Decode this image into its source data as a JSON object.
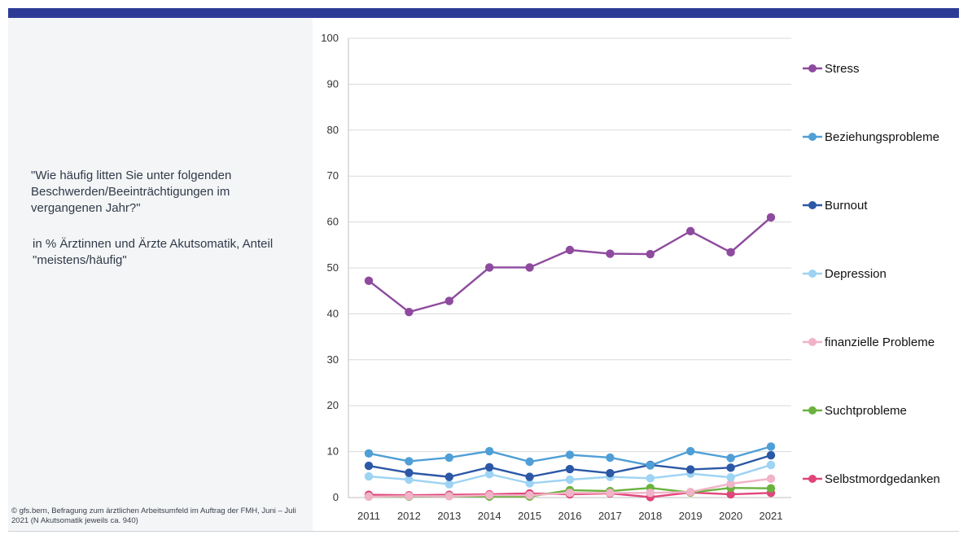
{
  "question": "\"Wie häufig litten Sie unter folgenden Beschwerden/Beeinträchtigungen im vergangenen Jahr?\"",
  "subtitle": "in % Ärztinnen und Ärzte Akutsomatik, Anteil \"meistens/häufig\"",
  "source": "© gfs.bern, Befragung zum ärztlichen Arbeitsumfeld im Auftrag der FMH, Juni – Juli 2021 (N Akutsomatik jeweils ca. 940)",
  "colors": {
    "header_bar": "#2e3b96",
    "panel_bg": "#f4f5f6"
  },
  "chart_data": {
    "type": "line",
    "title": "",
    "xlabel": "",
    "ylabel": "",
    "ylim": [
      0,
      100
    ],
    "yticks": [
      0,
      10,
      20,
      30,
      40,
      50,
      60,
      70,
      80,
      90,
      100
    ],
    "grid": true,
    "legend_position": "right",
    "x": [
      "2011",
      "2012",
      "2013",
      "2014",
      "2015",
      "2016",
      "2017",
      "2018",
      "2019",
      "2020",
      "2021"
    ],
    "series": [
      {
        "name": "Stress",
        "color": "#8e4a9e",
        "values": [
          47.2,
          40.4,
          42.8,
          50.1,
          50.1,
          53.9,
          53.1,
          53.0,
          58.0,
          53.4,
          61.0
        ]
      },
      {
        "name": "Beziehungsprobleme",
        "color": "#4f9fd6",
        "values": [
          9.6,
          7.9,
          8.7,
          10.1,
          7.8,
          9.3,
          8.7,
          7.0,
          10.1,
          8.6,
          11.1
        ]
      },
      {
        "name": "Burnout",
        "color": "#2c58a6",
        "values": [
          6.9,
          5.4,
          4.5,
          6.6,
          4.5,
          6.2,
          5.3,
          7.1,
          6.1,
          6.5,
          9.2
        ]
      },
      {
        "name": "Depression",
        "color": "#9dd3f3",
        "values": [
          4.6,
          3.9,
          2.9,
          5.1,
          3.1,
          3.9,
          4.5,
          4.2,
          5.2,
          4.4,
          7.1
        ]
      },
      {
        "name": "finanzielle Probleme",
        "color": "#f1b3c7",
        "values": [
          0.2,
          0.3,
          0.3,
          0.5,
          0.5,
          1.0,
          1.0,
          1.0,
          1.2,
          3.0,
          4.1
        ]
      },
      {
        "name": "Suchtprobleme",
        "color": "#6ab23e",
        "values": [
          0.2,
          0.2,
          0.3,
          0.2,
          0.2,
          1.6,
          1.4,
          2.1,
          1.1,
          2.1,
          2.0
        ]
      },
      {
        "name": "Selbstmordgedanken",
        "color": "#e0457a",
        "values": [
          0.6,
          0.5,
          0.6,
          0.7,
          0.9,
          0.7,
          0.9,
          0.1,
          1.1,
          0.7,
          1.0
        ]
      }
    ]
  }
}
